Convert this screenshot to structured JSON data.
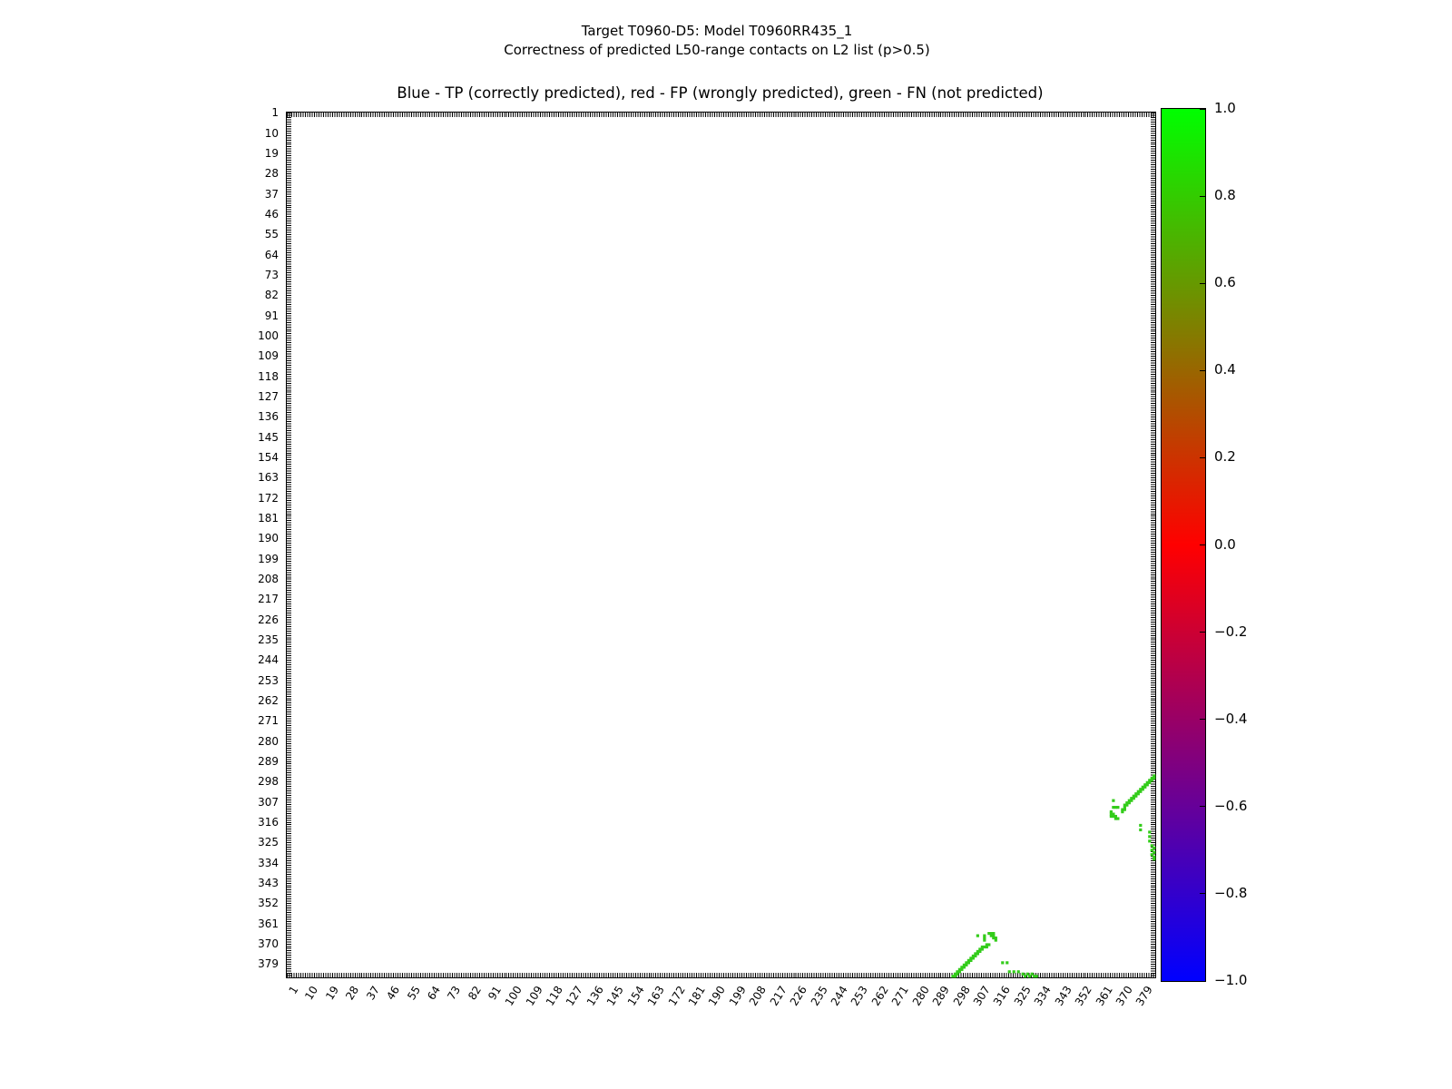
{
  "figure": {
    "suptitle_line1": "Target T0960-D5: Model T0960RR435_1",
    "suptitle_line2": "Correctness of predicted L50-range contacts on L2 list (p>0.5)",
    "axes_title": "Blue - TP (correctly predicted), red - FP (wrongly predicted), green - FN (not predicted)"
  },
  "chart_data": {
    "type": "scatter",
    "title": "Blue - TP (correctly predicted), red - FP (wrongly predicted), green - FN (not predicted)",
    "subtitle": "Target T0960-D5: Model T0960RR435_1 — Correctness of predicted L50-range contacts on L2 list (p>0.5)",
    "xlabel": "",
    "ylabel": "",
    "grid": false,
    "y_axis_inverted": true,
    "symmetric_matrix": true,
    "axis_range": [
      0.5,
      384.5
    ],
    "tick_labels": [
      1,
      10,
      19,
      28,
      37,
      46,
      55,
      64,
      73,
      82,
      91,
      100,
      109,
      118,
      127,
      136,
      145,
      154,
      163,
      172,
      181,
      190,
      199,
      208,
      217,
      226,
      235,
      244,
      253,
      262,
      271,
      280,
      289,
      298,
      307,
      316,
      325,
      334,
      343,
      352,
      361,
      370,
      379
    ],
    "x_tick_rotation_deg": 58,
    "legend_colors": {
      "TP": "#0000ff",
      "FP": "#ff0000",
      "FN": "#33cc1a"
    },
    "marker_color": "#33cc1a",
    "series": [
      {
        "name": "FN (not predicted)",
        "color": "#33cc1a",
        "note": "contacts plotted at (i,j) and mirrored (j,i)",
        "pairs": [
          [
            295,
            384
          ],
          [
            296,
            384
          ],
          [
            296,
            383
          ],
          [
            297,
            383
          ],
          [
            297,
            382
          ],
          [
            298,
            382
          ],
          [
            298,
            381
          ],
          [
            299,
            381
          ],
          [
            299,
            380
          ],
          [
            300,
            380
          ],
          [
            300,
            379
          ],
          [
            301,
            379
          ],
          [
            301,
            378
          ],
          [
            302,
            378
          ],
          [
            302,
            377
          ],
          [
            303,
            377
          ],
          [
            303,
            376
          ],
          [
            304,
            376
          ],
          [
            304,
            375
          ],
          [
            305,
            375
          ],
          [
            305,
            374
          ],
          [
            306,
            374
          ],
          [
            306,
            373
          ],
          [
            307,
            373
          ],
          [
            307,
            372
          ],
          [
            308,
            372
          ],
          [
            308,
            371
          ],
          [
            309,
            371
          ],
          [
            310,
            371
          ],
          [
            310,
            370
          ],
          [
            311,
            370
          ],
          [
            306,
            366
          ],
          [
            309,
            366
          ],
          [
            309,
            367
          ],
          [
            309,
            368
          ],
          [
            311,
            365
          ],
          [
            312,
            365
          ],
          [
            313,
            365
          ],
          [
            312,
            366
          ],
          [
            313,
            366
          ],
          [
            313,
            367
          ],
          [
            314,
            367
          ],
          [
            314,
            368
          ],
          [
            317,
            378
          ],
          [
            319,
            378
          ],
          [
            320,
            382
          ],
          [
            322,
            382
          ],
          [
            324,
            382
          ],
          [
            326,
            383
          ],
          [
            327,
            384
          ],
          [
            328,
            383
          ],
          [
            329,
            384
          ],
          [
            330,
            383
          ],
          [
            331,
            384
          ],
          [
            332,
            384
          ]
        ]
      },
      {
        "name": "TP (correctly predicted)",
        "color": "#0000ff",
        "pairs": []
      },
      {
        "name": "FP (wrongly predicted)",
        "color": "#ff0000",
        "pairs": []
      }
    ],
    "colorbar": {
      "colormap": "brg",
      "min": -1.0,
      "max": 1.0,
      "top_color": "#00ff00",
      "mid_color": "#ff0000",
      "bottom_color": "#0000ff",
      "tick_labels": [
        "1.0",
        "0.8",
        "0.6",
        "0.4",
        "0.2",
        "0.0",
        "−0.2",
        "−0.4",
        "−0.6",
        "−0.8",
        "−1.0"
      ]
    }
  }
}
